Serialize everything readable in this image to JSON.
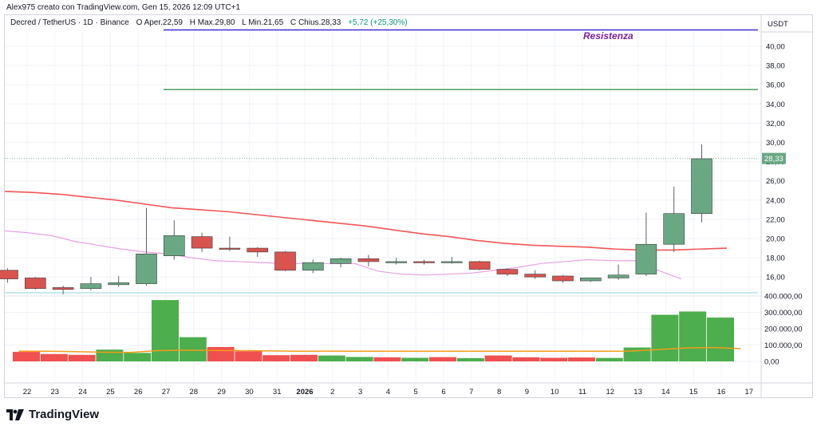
{
  "header": {
    "text": "Alex975 creato con TradingView.com, Gen 15, 2026 12:09 UTC+1"
  },
  "legend": {
    "symbol": "Decred / TetherUS · 1D · Binance",
    "open_label": "O",
    "open_text": "Aper.22,59",
    "high_label": "H",
    "high_text": "Max.29,80",
    "low_label": "L",
    "low_text": "Min.21,65",
    "close_label": "C",
    "close_text": "Chius.28,33",
    "change_text": "+5,72 (+25,30%)"
  },
  "annotation": {
    "resistance": "Resistenza"
  },
  "logo": {
    "text": "TradingView"
  },
  "colors": {
    "up": "#6aa884",
    "down": "#d9534f",
    "vol_up": "#4cae4c",
    "vol_down": "#f05050",
    "ma_fast": "#e9a0e4",
    "ma_slow": "#f25555",
    "vol_ma": "#f59c1a",
    "resistance_line": "#3f2bd6",
    "support_line": "#2e8b3e",
    "price_tag": "#6aa884"
  },
  "chart_data": {
    "type": "candlestick",
    "price_axis_label": "USDT",
    "price_ticks": [
      "40,00",
      "38,00",
      "36,00",
      "34,00",
      "32,00",
      "30,00",
      "28,00",
      "26,00",
      "24,00",
      "22,00",
      "20,00",
      "18,00",
      "16,00"
    ],
    "volume_ticks": [
      "400.000,00",
      "300.000,00",
      "200.000,00",
      "100.000,00",
      "0,00"
    ],
    "x_ticks": [
      "22",
      "23",
      "24",
      "25",
      "26",
      "27",
      "28",
      "29",
      "30",
      "31",
      "2026",
      "2",
      "3",
      "4",
      "5",
      "6",
      "7",
      "8",
      "9",
      "10",
      "11",
      "12",
      "13",
      "14",
      "15",
      "16",
      "17"
    ],
    "last_price": "28,33",
    "resistance_level": 41.7,
    "support_level": 35.5,
    "candles": [
      {
        "o": 16.7,
        "h": 16.9,
        "l": 15.4,
        "c": 15.8,
        "v": 58000
      },
      {
        "o": 15.9,
        "h": 16.0,
        "l": 14.7,
        "c": 14.8,
        "v": 45000
      },
      {
        "o": 14.9,
        "h": 15.1,
        "l": 14.2,
        "c": 14.7,
        "v": 40000
      },
      {
        "o": 14.8,
        "h": 16.0,
        "l": 14.6,
        "c": 15.3,
        "v": 72000
      },
      {
        "o": 15.2,
        "h": 16.1,
        "l": 15.0,
        "c": 15.4,
        "v": 52000
      },
      {
        "o": 15.3,
        "h": 23.2,
        "l": 15.1,
        "c": 18.4,
        "v": 375000
      },
      {
        "o": 18.2,
        "h": 21.9,
        "l": 17.8,
        "c": 20.3,
        "v": 148000
      },
      {
        "o": 20.2,
        "h": 20.6,
        "l": 18.6,
        "c": 19.0,
        "v": 88000
      },
      {
        "o": 19.0,
        "h": 20.2,
        "l": 18.7,
        "c": 18.9,
        "v": 62000
      },
      {
        "o": 19.0,
        "h": 19.1,
        "l": 18.1,
        "c": 18.6,
        "v": 38000
      },
      {
        "o": 18.6,
        "h": 18.7,
        "l": 16.6,
        "c": 16.7,
        "v": 40000
      },
      {
        "o": 16.7,
        "h": 17.8,
        "l": 16.4,
        "c": 17.5,
        "v": 36000
      },
      {
        "o": 17.4,
        "h": 18.0,
        "l": 17.0,
        "c": 17.9,
        "v": 27000
      },
      {
        "o": 17.9,
        "h": 18.3,
        "l": 17.1,
        "c": 17.6,
        "v": 25000
      },
      {
        "o": 17.5,
        "h": 18.0,
        "l": 17.3,
        "c": 17.6,
        "v": 22000
      },
      {
        "o": 17.6,
        "h": 17.8,
        "l": 17.3,
        "c": 17.5,
        "v": 26000
      },
      {
        "o": 17.5,
        "h": 18.1,
        "l": 17.4,
        "c": 17.6,
        "v": 20000
      },
      {
        "o": 17.6,
        "h": 17.7,
        "l": 16.7,
        "c": 16.8,
        "v": 36000
      },
      {
        "o": 16.8,
        "h": 16.9,
        "l": 16.1,
        "c": 16.3,
        "v": 25000
      },
      {
        "o": 16.3,
        "h": 16.7,
        "l": 15.8,
        "c": 16.0,
        "v": 22000
      },
      {
        "o": 16.1,
        "h": 16.2,
        "l": 15.4,
        "c": 15.6,
        "v": 24000
      },
      {
        "o": 15.6,
        "h": 15.9,
        "l": 15.5,
        "c": 15.9,
        "v": 21000
      },
      {
        "o": 15.9,
        "h": 17.3,
        "l": 15.7,
        "c": 16.2,
        "v": 85000
      },
      {
        "o": 16.3,
        "h": 22.7,
        "l": 16.1,
        "c": 19.4,
        "v": 285000
      },
      {
        "o": 19.4,
        "h": 25.4,
        "l": 18.6,
        "c": 22.6,
        "v": 305000
      },
      {
        "o": 22.6,
        "h": 29.8,
        "l": 21.7,
        "c": 28.3,
        "v": 268000
      }
    ],
    "ma_slow": [
      24.9,
      24.8,
      24.6,
      24.3,
      24.0,
      23.6,
      23.2,
      23.0,
      22.8,
      22.5,
      22.2,
      21.9,
      21.6,
      21.3,
      20.9,
      20.5,
      20.2,
      19.8,
      19.5,
      19.3,
      19.2,
      19.1,
      18.9,
      18.8,
      18.8,
      18.9,
      19.0
    ],
    "ma_fast": [
      20.8,
      20.6,
      20.3,
      19.7,
      19.3,
      18.9,
      18.6,
      18.4,
      18.0,
      17.7,
      17.6,
      17.5,
      17.4,
      17.4,
      17.4,
      17.4,
      16.6,
      16.3,
      16.2,
      16.3,
      16.4,
      16.7,
      17.0,
      17.4,
      17.6,
      17.8,
      17.7,
      17.7,
      16.7,
      15.8
    ],
    "vol_ma": [
      62000,
      62000,
      60000,
      56000,
      55000,
      66000,
      68000,
      67000,
      66000,
      64000,
      62000,
      63000,
      62000,
      62000,
      62000,
      62000,
      62000,
      62000,
      62000,
      62000,
      62000,
      62000,
      63000,
      72000,
      82000,
      85000,
      78000
    ]
  }
}
